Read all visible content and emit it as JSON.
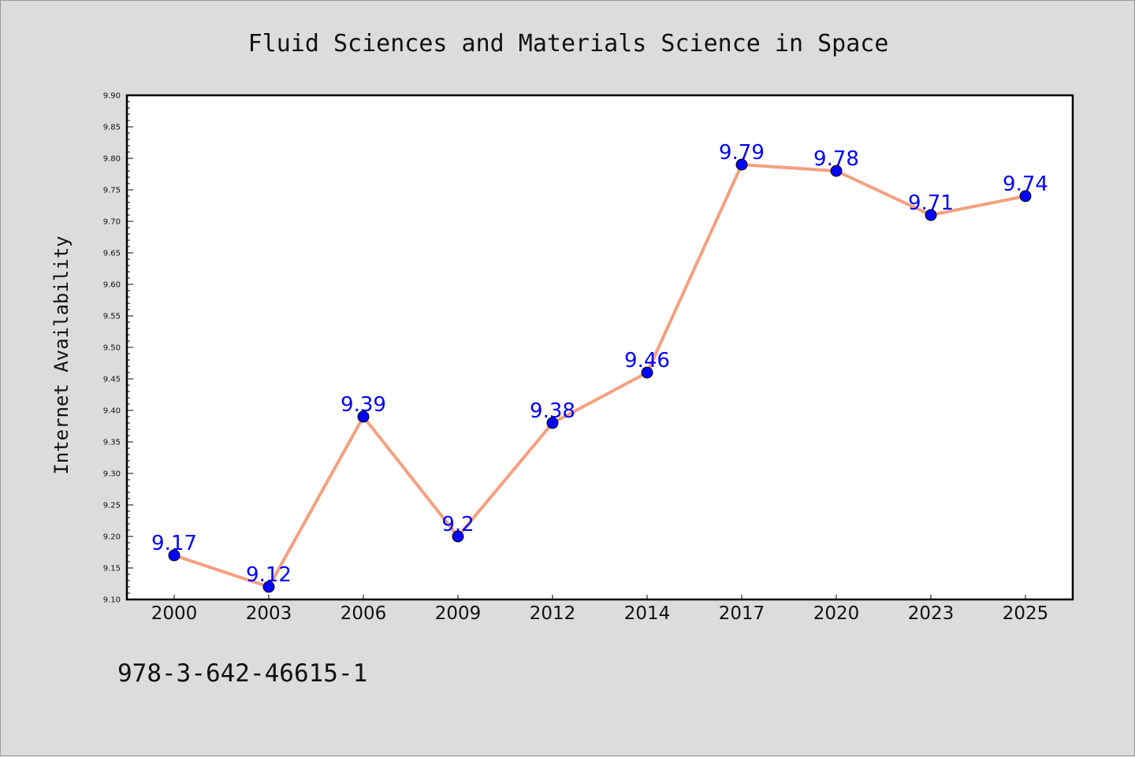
{
  "chart_data": {
    "type": "line",
    "title": "Fluid Sciences and Materials Science in Space",
    "xlabel": "",
    "ylabel": "Internet Availability",
    "categories": [
      "2000",
      "2003",
      "2006",
      "2009",
      "2012",
      "2014",
      "2017",
      "2020",
      "2023",
      "2025"
    ],
    "series": [
      {
        "values": [
          9.17,
          9.12,
          9.39,
          9.2,
          9.38,
          9.46,
          9.79,
          9.78,
          9.71,
          9.74
        ],
        "data_labels": [
          "9.17",
          "9.12",
          "9.39",
          "9.2",
          "9.38",
          "9.46",
          "9.79",
          "9.78",
          "9.71",
          "9.74"
        ],
        "line_color": "#f4a07f",
        "marker_color": "#0000ff"
      }
    ],
    "ylim": [
      9.1,
      9.9
    ],
    "yticks": [
      "9.10",
      "9.15",
      "9.20",
      "9.25",
      "9.30",
      "9.35",
      "9.40",
      "9.45",
      "9.50",
      "9.55",
      "9.60",
      "9.65",
      "9.70",
      "9.75",
      "9.80",
      "9.85",
      "9.90"
    ],
    "grid": false,
    "legend": "none",
    "background": "#dcdcdc",
    "plot_background": "#ffffff"
  },
  "footer": {
    "text": "978-3-642-46615-1"
  }
}
